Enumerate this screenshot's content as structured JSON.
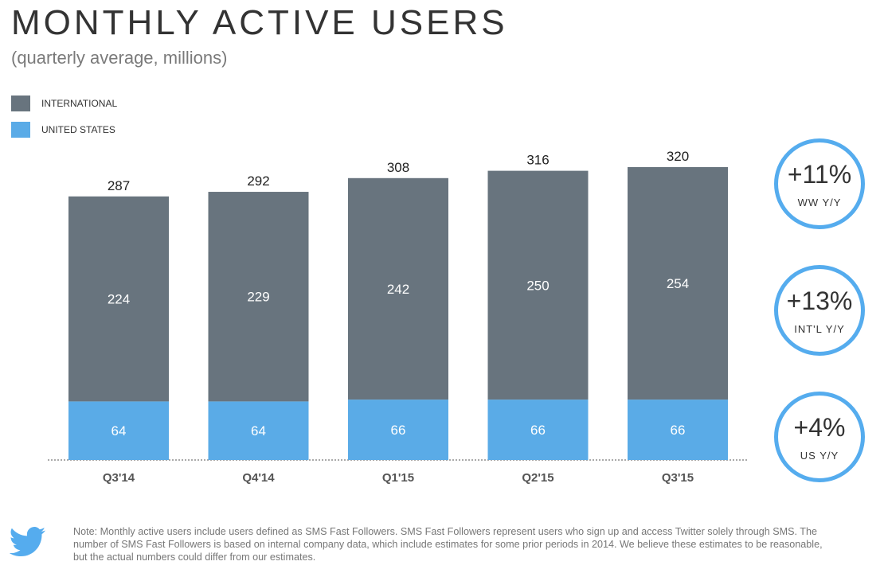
{
  "title": "MONTHLY ACTIVE USERS",
  "subtitle": "(quarterly average, millions)",
  "colors": {
    "international": "#68747e",
    "us": "#5aabe7",
    "accent": "#55acee"
  },
  "chart_data": {
    "type": "bar",
    "stacked": true,
    "categories": [
      "Q3'14",
      "Q4'14",
      "Q1'15",
      "Q2'15",
      "Q3'15"
    ],
    "series": [
      {
        "name": "UNITED STATES",
        "values": [
          64,
          64,
          66,
          66,
          66
        ]
      },
      {
        "name": "INTERNATIONAL",
        "values": [
          224,
          229,
          242,
          250,
          254
        ]
      }
    ],
    "totals": [
      287,
      292,
      308,
      316,
      320
    ],
    "legend_placement": "top-left",
    "grid": false,
    "ylim": [
      0,
      320
    ]
  },
  "kpis": [
    {
      "value": "+11%",
      "label": "WW Y/Y"
    },
    {
      "value": "+13%",
      "label": "INT'L Y/Y"
    },
    {
      "value": "+4%",
      "label": "US Y/Y"
    }
  ],
  "footer": {
    "note": "Note: Monthly active users include users defined as SMS Fast Followers. SMS Fast Followers represent users who sign up and access Twitter solely through SMS. The number of SMS Fast Followers is based on internal company data, which include estimates for some prior periods in 2014. We believe these estimates to be reasonable, but the actual numbers could differ from our estimates.",
    "logo_icon": "twitter-bird-icon"
  }
}
